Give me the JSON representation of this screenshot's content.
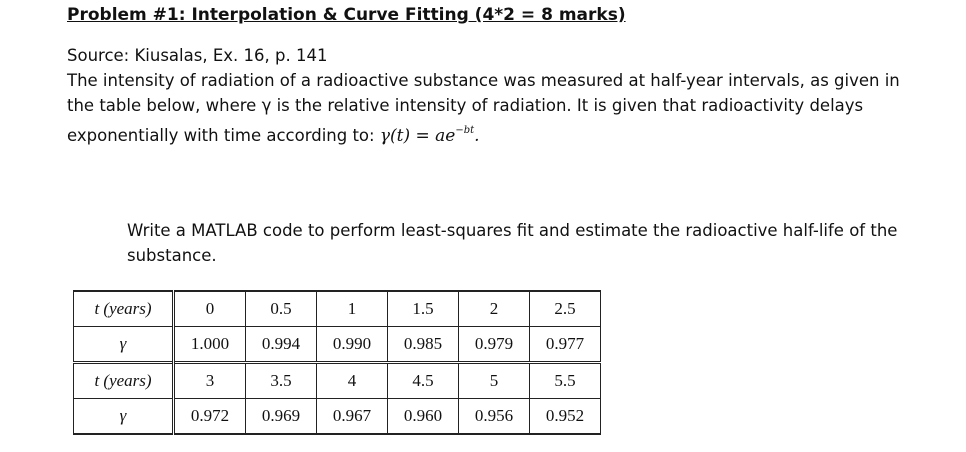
{
  "title": "Problem #1: Interpolation & Curve Fitting (4*2 = 8 marks)",
  "source": "Source: Kiusalas, Ex. 16, p. 141",
  "description": {
    "line1": "The intensity of radiation of a radioactive substance was measured at half-year intervals, as given in",
    "line2": "the table below, where γ is the relative intensity of radiation. It is given that radioactivity delays",
    "line3_prefix": "exponentially with time according to:",
    "formula_base": "γ(t) = ae",
    "formula_exp": "−bt",
    "formula_end": "."
  },
  "task": "Write a MATLAB code to perform least-squares fit and estimate the radioactive half-life of the substance.",
  "table": {
    "row_header_t": "t (years)",
    "row_header_y": "γ",
    "block1": {
      "t": [
        "0",
        "0.5",
        "1",
        "1.5",
        "2",
        "2.5"
      ],
      "y": [
        "1.000",
        "0.994",
        "0.990",
        "0.985",
        "0.979",
        "0.977"
      ]
    },
    "block2": {
      "t": [
        "3",
        "3.5",
        "4",
        "4.5",
        "5",
        "5.5"
      ],
      "y": [
        "0.972",
        "0.969",
        "0.967",
        "0.960",
        "0.956",
        "0.952"
      ]
    }
  }
}
